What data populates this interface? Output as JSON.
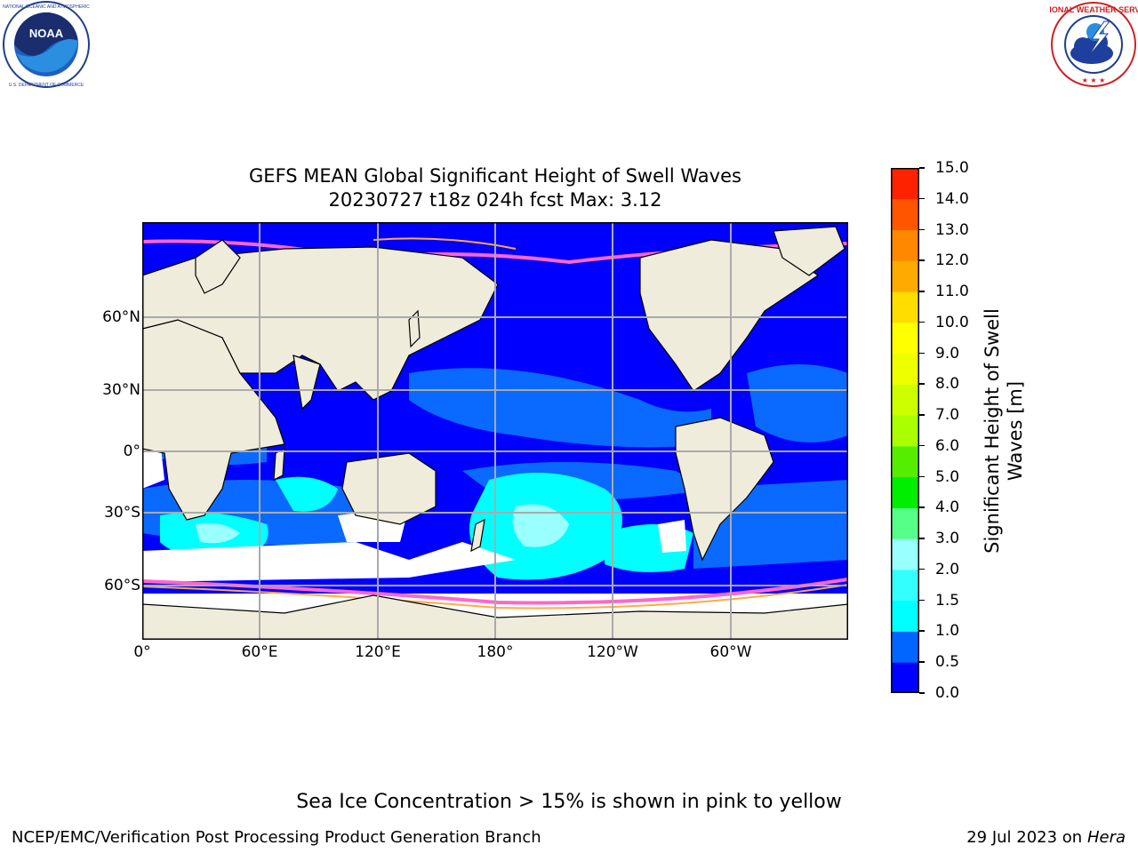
{
  "header": {
    "logo_left": {
      "name": "noaa-logo",
      "lettering": "NOAA",
      "ring_text": "NATIONAL OCEANIC AND ATMOSPHERIC ADMINISTRATION · U.S. DEPARTMENT OF COMMERCE"
    },
    "logo_right": {
      "name": "nws-logo",
      "ring_text": "NATIONAL WEATHER SERVICE"
    }
  },
  "map": {
    "title_line1": "GEFS MEAN Global Significant Height of Swell Waves",
    "title_line2": "20230727 t18z 024h fcst   Max: 3.12",
    "x_ticks": [
      "0°",
      "60°E",
      "120°E",
      "180°",
      "120°W",
      "60°W"
    ],
    "y_ticks": [
      "60°N",
      "30°N",
      "0°",
      "30°S",
      "60°S"
    ],
    "land_color": "#efecdc",
    "no_data_color": "#ffffff"
  },
  "colorbar": {
    "label_line1": "Significant Height of Swell",
    "label_line2": "Waves [m]",
    "ticks": [
      "0.0",
      "0.5",
      "1.0",
      "1.5",
      "2.0",
      "3.0",
      "4.0",
      "5.0",
      "6.0",
      "7.0",
      "8.0",
      "9.0",
      "10.0",
      "11.0",
      "12.0",
      "13.0",
      "14.0",
      "15.0"
    ],
    "colors": [
      "#0000ff",
      "#0066ff",
      "#00ffff",
      "#33ffff",
      "#99ffff",
      "#55ff88",
      "#00ee00",
      "#55ee00",
      "#aaff00",
      "#ccff00",
      "#eeff00",
      "#ffff00",
      "#ffdd00",
      "#ffaa00",
      "#ff8800",
      "#ff5500",
      "#ff2200"
    ]
  },
  "footer": {
    "note": "Sea Ice Concentration > 15% is shown in pink to yellow",
    "org": "NCEP/EMC/Verification Post Processing Product Generation Branch",
    "date": "29 Jul 2023 on ",
    "machine": "Hera"
  }
}
